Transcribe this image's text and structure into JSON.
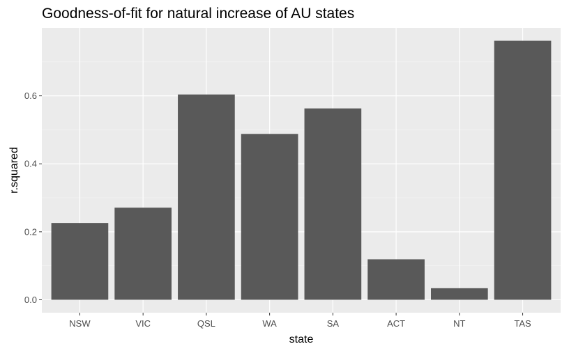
{
  "chart_data": {
    "type": "bar",
    "title": "Goodness-of-fit for natural increase of AU states",
    "xlabel": "state",
    "ylabel": "r.squared",
    "categories": [
      "NSW",
      "VIC",
      "QSL",
      "WA",
      "SA",
      "ACT",
      "NT",
      "TAS"
    ],
    "values": [
      0.226,
      0.271,
      0.604,
      0.488,
      0.563,
      0.119,
      0.034,
      0.762
    ],
    "ylim": [
      -0.038,
      0.8
    ],
    "yticks": [
      0.0,
      0.2,
      0.4,
      0.6
    ],
    "ytick_labels": [
      "0.0",
      "0.2",
      "0.4",
      "0.6"
    ],
    "grid": true,
    "legend": "none",
    "colors": {
      "bar": "#595959",
      "panel_background": "#ebebeb",
      "grid_major": "#ffffff",
      "grid_minor": "#f5f5f5"
    }
  }
}
